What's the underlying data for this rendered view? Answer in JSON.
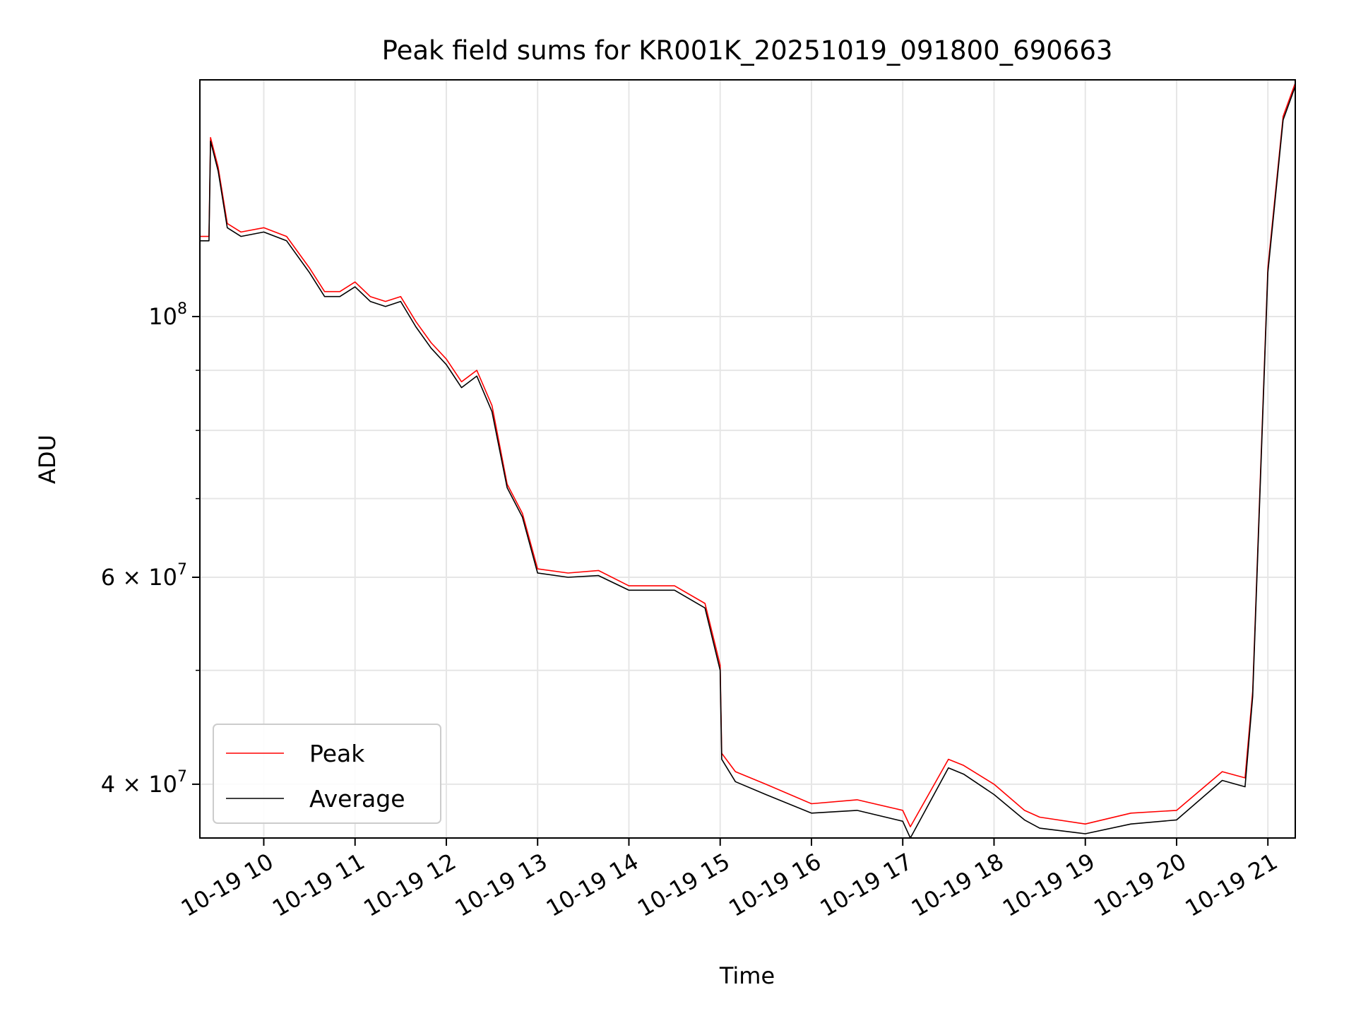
{
  "chart_data": {
    "type": "line",
    "title": "Peak field sums for KR001K_20251019_091800_690663",
    "xlabel": "Time",
    "ylabel": "ADU",
    "y_scale": "log",
    "xlim": [
      "2025-10-19 09:18",
      "2025-10-19 21:18"
    ],
    "ylim": [
      36000000,
      159000000
    ],
    "x_ticks": [
      {
        "value": "2025-10-19 10:00",
        "label": "10-19 10"
      },
      {
        "value": "2025-10-19 11:00",
        "label": "10-19 11"
      },
      {
        "value": "2025-10-19 12:00",
        "label": "10-19 12"
      },
      {
        "value": "2025-10-19 13:00",
        "label": "10-19 13"
      },
      {
        "value": "2025-10-19 14:00",
        "label": "10-19 14"
      },
      {
        "value": "2025-10-19 15:00",
        "label": "10-19 15"
      },
      {
        "value": "2025-10-19 16:00",
        "label": "10-19 16"
      },
      {
        "value": "2025-10-19 17:00",
        "label": "10-19 17"
      },
      {
        "value": "2025-10-19 18:00",
        "label": "10-19 18"
      },
      {
        "value": "2025-10-19 19:00",
        "label": "10-19 19"
      },
      {
        "value": "2025-10-19 20:00",
        "label": "10-19 20"
      },
      {
        "value": "2025-10-19 21:00",
        "label": "10-19 21"
      }
    ],
    "y_major_ticks": [
      {
        "value": 40000000,
        "base": "4 × 10",
        "exp": "7"
      },
      {
        "value": 60000000,
        "base": "6 × 10",
        "exp": "7"
      },
      {
        "value": 100000000,
        "base": "10",
        "exp": "8"
      }
    ],
    "y_minor_ticks": [
      50000000,
      70000000,
      80000000,
      90000000
    ],
    "grid": true,
    "legend": "lower-left",
    "series": [
      {
        "name": "Peak",
        "color": "#ff0000",
        "x": [
          "2025-10-19 09:18",
          "2025-10-19 09:24",
          "2025-10-19 09:25",
          "2025-10-19 09:30",
          "2025-10-19 09:36",
          "2025-10-19 09:45",
          "2025-10-19 10:00",
          "2025-10-19 10:15",
          "2025-10-19 10:30",
          "2025-10-19 10:40",
          "2025-10-19 10:50",
          "2025-10-19 11:00",
          "2025-10-19 11:10",
          "2025-10-19 11:20",
          "2025-10-19 11:30",
          "2025-10-19 11:40",
          "2025-10-19 11:50",
          "2025-10-19 12:00",
          "2025-10-19 12:10",
          "2025-10-19 12:20",
          "2025-10-19 12:30",
          "2025-10-19 12:40",
          "2025-10-19 12:50",
          "2025-10-19 13:00",
          "2025-10-19 13:20",
          "2025-10-19 13:40",
          "2025-10-19 14:00",
          "2025-10-19 14:30",
          "2025-10-19 14:50",
          "2025-10-19 15:00",
          "2025-10-19 15:01",
          "2025-10-19 15:10",
          "2025-10-19 15:30",
          "2025-10-19 16:00",
          "2025-10-19 16:30",
          "2025-10-19 17:00",
          "2025-10-19 17:05",
          "2025-10-19 17:30",
          "2025-10-19 17:40",
          "2025-10-19 18:00",
          "2025-10-19 18:20",
          "2025-10-19 18:30",
          "2025-10-19 19:00",
          "2025-10-19 19:30",
          "2025-10-19 20:00",
          "2025-10-19 20:30",
          "2025-10-19 20:45",
          "2025-10-19 20:50",
          "2025-10-19 21:00",
          "2025-10-19 21:10",
          "2025-10-19 21:18"
        ],
        "values": [
          117000000,
          117000000,
          142000000,
          134000000,
          120000000,
          118000000,
          119000000,
          117000000,
          110000000,
          105000000,
          105000000,
          107000000,
          104000000,
          103000000,
          104000000,
          99000000,
          95000000,
          92000000,
          88000000,
          90000000,
          84000000,
          72000000,
          68000000,
          61000000,
          60500000,
          60800000,
          59000000,
          59000000,
          57000000,
          50500000,
          42500000,
          41000000,
          40000000,
          38500000,
          38800000,
          38000000,
          36800000,
          42000000,
          41500000,
          40000000,
          38000000,
          37500000,
          37000000,
          37800000,
          38000000,
          41000000,
          40500000,
          48000000,
          110000000,
          148000000,
          158000000
        ]
      },
      {
        "name": "Average",
        "color": "#000000",
        "x": [
          "2025-10-19 09:18",
          "2025-10-19 09:24",
          "2025-10-19 09:25",
          "2025-10-19 09:30",
          "2025-10-19 09:36",
          "2025-10-19 09:45",
          "2025-10-19 10:00",
          "2025-10-19 10:15",
          "2025-10-19 10:30",
          "2025-10-19 10:40",
          "2025-10-19 10:50",
          "2025-10-19 11:00",
          "2025-10-19 11:10",
          "2025-10-19 11:20",
          "2025-10-19 11:30",
          "2025-10-19 11:40",
          "2025-10-19 11:50",
          "2025-10-19 12:00",
          "2025-10-19 12:10",
          "2025-10-19 12:20",
          "2025-10-19 12:30",
          "2025-10-19 12:40",
          "2025-10-19 12:50",
          "2025-10-19 13:00",
          "2025-10-19 13:20",
          "2025-10-19 13:40",
          "2025-10-19 14:00",
          "2025-10-19 14:30",
          "2025-10-19 14:50",
          "2025-10-19 15:00",
          "2025-10-19 15:01",
          "2025-10-19 15:10",
          "2025-10-19 15:30",
          "2025-10-19 16:00",
          "2025-10-19 16:30",
          "2025-10-19 17:00",
          "2025-10-19 17:05",
          "2025-10-19 17:30",
          "2025-10-19 17:40",
          "2025-10-19 18:00",
          "2025-10-19 18:20",
          "2025-10-19 18:30",
          "2025-10-19 19:00",
          "2025-10-19 19:30",
          "2025-10-19 20:00",
          "2025-10-19 20:30",
          "2025-10-19 20:45",
          "2025-10-19 20:50",
          "2025-10-19 21:00",
          "2025-10-19 21:10",
          "2025-10-19 21:18"
        ],
        "values": [
          116000000,
          116000000,
          141000000,
          133000000,
          119000000,
          117000000,
          118000000,
          116000000,
          109000000,
          104000000,
          104000000,
          106000000,
          103000000,
          102000000,
          103000000,
          98000000,
          94000000,
          91000000,
          87000000,
          89000000,
          83000000,
          71500000,
          67500000,
          60500000,
          60000000,
          60200000,
          58500000,
          58500000,
          56500000,
          50000000,
          42000000,
          40200000,
          39200000,
          37800000,
          38000000,
          37200000,
          36000000,
          41300000,
          40800000,
          39200000,
          37300000,
          36700000,
          36300000,
          37000000,
          37300000,
          40300000,
          39800000,
          47500000,
          109000000,
          147000000,
          157000000
        ]
      }
    ]
  }
}
